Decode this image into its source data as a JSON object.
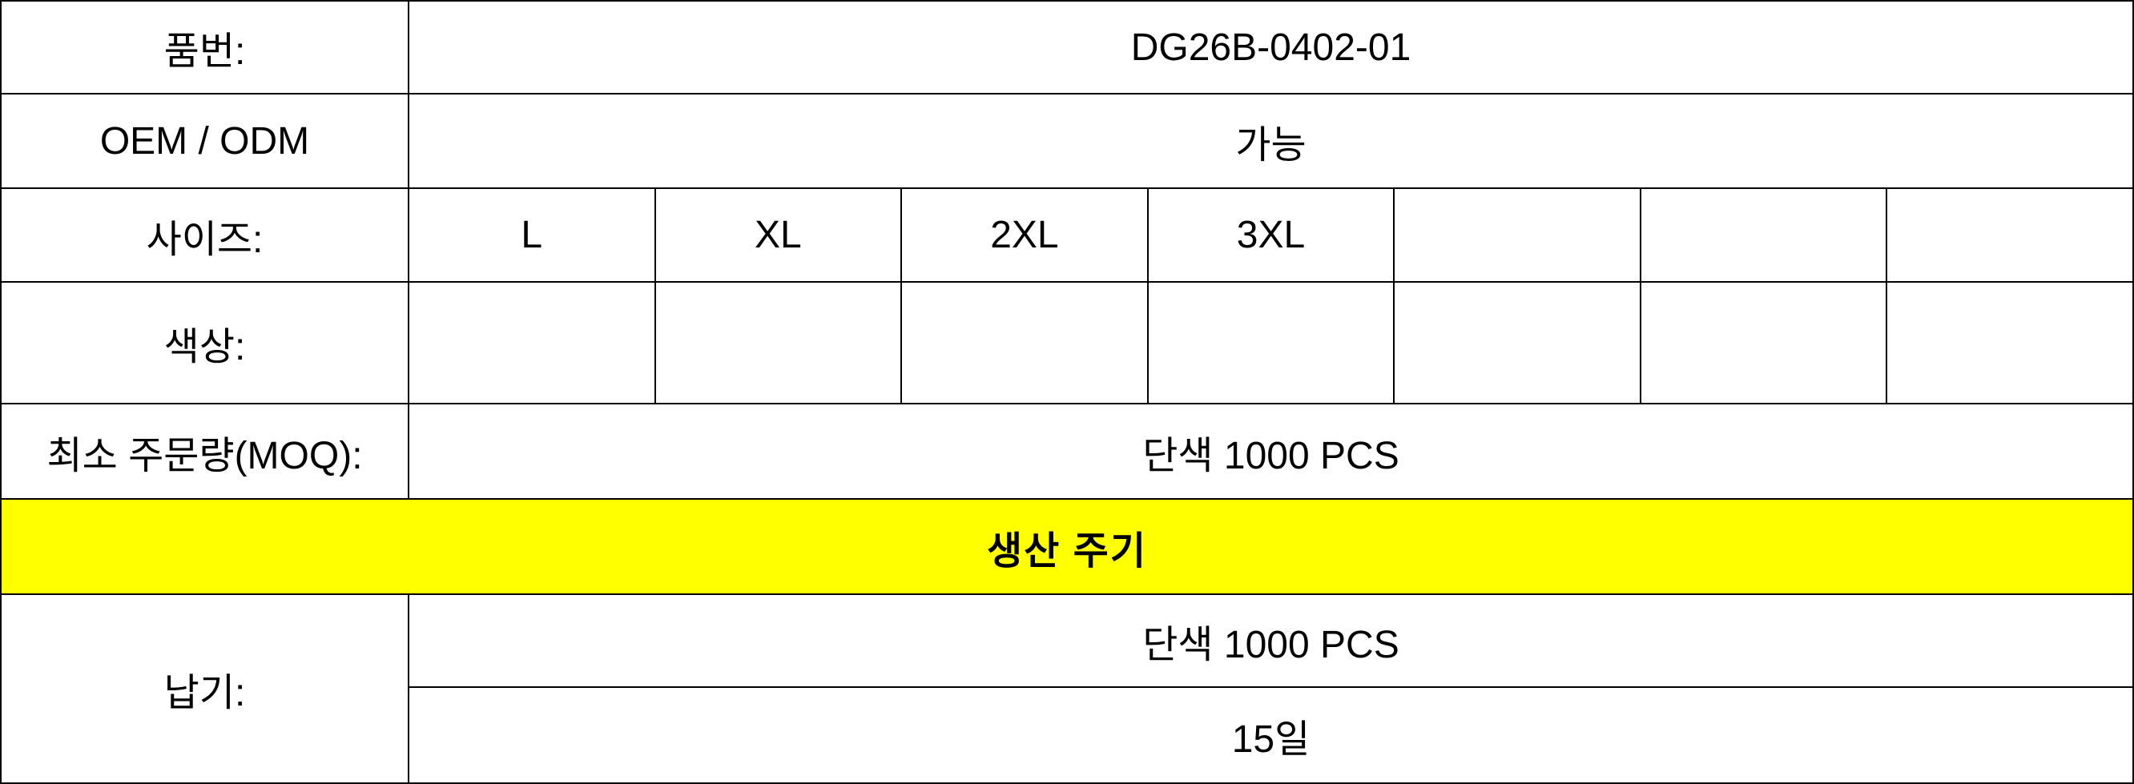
{
  "theme": {
    "highlight_yellow": "#FFFF00",
    "grid_line_black": "#000000",
    "text_black": "#000000",
    "cell_white": "#FFFFFF"
  },
  "table": {
    "rows": {
      "part_number": {
        "label": "품번:",
        "value": "DG26B-0402-01"
      },
      "oem_odm": {
        "label": "OEM / ODM",
        "value": "가능"
      },
      "size": {
        "label": "사이즈:",
        "values": [
          "L",
          "XL",
          "2XL",
          "3XL",
          "",
          "",
          ""
        ]
      },
      "color": {
        "label": "색상:",
        "values": [
          "",
          "",
          "",
          "",
          "",
          "",
          ""
        ]
      },
      "moq": {
        "label": "최소 주문량(MOQ):",
        "value": "단색 1000 PCS"
      },
      "production_cycle": {
        "header": "생산 주기"
      },
      "delivery": {
        "label": "납기:",
        "qty": "단색 1000 PCS",
        "days": "15일"
      }
    }
  }
}
